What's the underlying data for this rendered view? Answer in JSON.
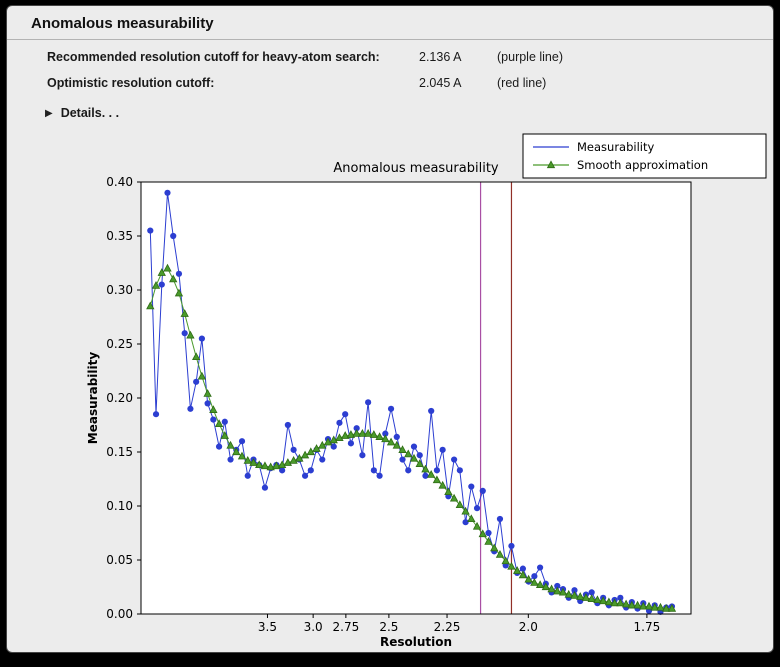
{
  "panel": {
    "title": "Anomalous measurability"
  },
  "info": {
    "row1_label": "Recommended resolution cutoff for heavy-atom search:",
    "row1_value": "2.136 A",
    "row1_note": "(purple line)",
    "row2_label": "Optimistic resolution cutoff:",
    "row2_value": "2.045 A",
    "row2_note": "(red line)",
    "details_label": "Details. . ."
  },
  "chart_data": {
    "type": "line",
    "title": "Anomalous measurability",
    "xlabel": "Resolution",
    "ylabel": "Measurability",
    "x_axis_scale": "1/d^2, labels in Angstrom",
    "xlim": [
      0,
      0.355
    ],
    "ylim": [
      0,
      0.4
    ],
    "yticks": [
      0,
      0.05,
      0.1,
      0.15,
      0.2,
      0.25,
      0.3,
      0.35,
      0.4
    ],
    "ytick_labels": [
      "0.00",
      "0.05",
      "0.10",
      "0.15",
      "0.20",
      "0.25",
      "0.30",
      "0.35",
      "0.40"
    ],
    "xticks": {
      "d": [
        3.5,
        3.0,
        2.75,
        2.5,
        2.25,
        2.0,
        1.75
      ],
      "labels": [
        "3.5",
        "3.0",
        "2.75",
        "2.5",
        "2.25",
        "2.0",
        "1.75"
      ]
    },
    "vlines": [
      {
        "name": "recommended-cutoff",
        "resolution": 2.136,
        "color": "#a94fa4"
      },
      {
        "name": "optimistic-cutoff",
        "resolution": 2.045,
        "color": "#913028"
      }
    ],
    "legend_position": "top-right",
    "x": [
      0.006,
      0.0097,
      0.0134,
      0.0171,
      0.0208,
      0.0245,
      0.0282,
      0.0319,
      0.0356,
      0.0393,
      0.043,
      0.0467,
      0.0504,
      0.0541,
      0.0578,
      0.0615,
      0.0652,
      0.0689,
      0.0726,
      0.0763,
      0.08,
      0.0837,
      0.0874,
      0.0911,
      0.0948,
      0.0985,
      0.1022,
      0.1059,
      0.1096,
      0.1133,
      0.117,
      0.1207,
      0.1244,
      0.1281,
      0.1318,
      0.1355,
      0.1392,
      0.1429,
      0.1466,
      0.1503,
      0.154,
      0.1577,
      0.1614,
      0.1651,
      0.1688,
      0.1725,
      0.1762,
      0.1799,
      0.1836,
      0.1873,
      0.191,
      0.1947,
      0.1984,
      0.2021,
      0.2058,
      0.2095,
      0.2132,
      0.2169,
      0.2206,
      0.2243,
      0.228,
      0.2317,
      0.2354,
      0.2391,
      0.2428,
      0.2465,
      0.2502,
      0.2539,
      0.2576,
      0.2613,
      0.265,
      0.2687,
      0.2724,
      0.2761,
      0.2798,
      0.2835,
      0.2872,
      0.2909,
      0.2946,
      0.2983,
      0.302,
      0.3057,
      0.3094,
      0.3131,
      0.3168,
      0.3205,
      0.3242,
      0.3279,
      0.3316,
      0.3353,
      0.339,
      0.3427
    ],
    "series": [
      {
        "name": "Measurability",
        "color": "#2c3ed1",
        "marker": "circle",
        "values": [
          0.355,
          0.185,
          0.305,
          0.39,
          0.35,
          0.315,
          0.26,
          0.19,
          0.215,
          0.255,
          0.195,
          0.18,
          0.155,
          0.178,
          0.143,
          0.152,
          0.16,
          0.128,
          0.143,
          0.138,
          0.117,
          0.135,
          0.138,
          0.133,
          0.175,
          0.152,
          0.143,
          0.128,
          0.133,
          0.152,
          0.143,
          0.162,
          0.155,
          0.177,
          0.185,
          0.158,
          0.172,
          0.147,
          0.196,
          0.133,
          0.128,
          0.167,
          0.19,
          0.164,
          0.143,
          0.133,
          0.155,
          0.147,
          0.128,
          0.188,
          0.133,
          0.152,
          0.109,
          0.143,
          0.133,
          0.085,
          0.118,
          0.098,
          0.114,
          0.075,
          0.058,
          0.088,
          0.045,
          0.063,
          0.038,
          0.042,
          0.03,
          0.035,
          0.043,
          0.028,
          0.02,
          0.026,
          0.023,
          0.015,
          0.022,
          0.012,
          0.018,
          0.02,
          0.01,
          0.015,
          0.008,
          0.013,
          0.015,
          0.006,
          0.011,
          0.005,
          0.01,
          0.003,
          0.008,
          0.002,
          0.006,
          0.007
        ]
      },
      {
        "name": "Smooth approximation",
        "color": "#4a9a2b",
        "edge": "#2e6b15",
        "marker": "triangle",
        "values": [
          0.285,
          0.304,
          0.316,
          0.32,
          0.31,
          0.297,
          0.278,
          0.258,
          0.238,
          0.22,
          0.204,
          0.189,
          0.176,
          0.165,
          0.156,
          0.15,
          0.146,
          0.142,
          0.14,
          0.138,
          0.137,
          0.136,
          0.137,
          0.138,
          0.14,
          0.142,
          0.144,
          0.147,
          0.15,
          0.153,
          0.156,
          0.159,
          0.161,
          0.163,
          0.165,
          0.166,
          0.167,
          0.167,
          0.167,
          0.166,
          0.164,
          0.162,
          0.159,
          0.156,
          0.152,
          0.148,
          0.144,
          0.139,
          0.134,
          0.129,
          0.124,
          0.119,
          0.113,
          0.107,
          0.101,
          0.095,
          0.088,
          0.081,
          0.074,
          0.067,
          0.061,
          0.055,
          0.049,
          0.044,
          0.04,
          0.036,
          0.032,
          0.029,
          0.027,
          0.025,
          0.023,
          0.021,
          0.02,
          0.018,
          0.017,
          0.016,
          0.015,
          0.014,
          0.013,
          0.012,
          0.011,
          0.01,
          0.01,
          0.009,
          0.008,
          0.008,
          0.007,
          0.007,
          0.006,
          0.006,
          0.005,
          0.005
        ]
      }
    ]
  }
}
